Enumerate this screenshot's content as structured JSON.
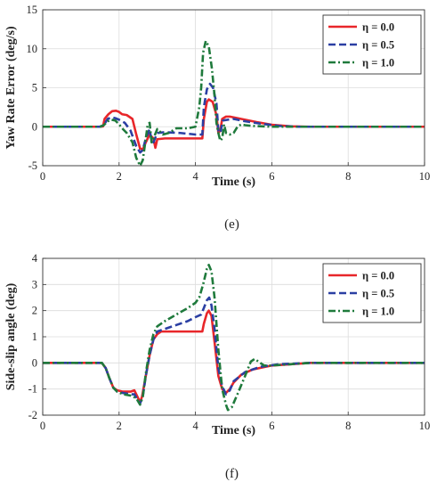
{
  "chart_data": [
    {
      "type": "line",
      "caption": "(e)",
      "xlabel": "Time (s)",
      "ylabel": "Yaw Rate Error (deg/s)",
      "xlim": [
        0,
        10
      ],
      "ylim": [
        -5,
        15
      ],
      "xticks": [
        "0",
        "2",
        "4",
        "6",
        "8",
        "10"
      ],
      "yticks": [
        "-5",
        "0",
        "5",
        "10",
        "15"
      ],
      "grid": true,
      "legend_position": "top-right",
      "series": [
        {
          "name": "η = 0.0",
          "color": "#e8262a",
          "dash": "solid",
          "points": [
            [
              0,
              0
            ],
            [
              1.5,
              0
            ],
            [
              1.58,
              0.05
            ],
            [
              1.62,
              1.0
            ],
            [
              1.72,
              1.6
            ],
            [
              1.82,
              2.0
            ],
            [
              1.92,
              2.05
            ],
            [
              2.0,
              1.9
            ],
            [
              2.08,
              1.6
            ],
            [
              2.2,
              1.5
            ],
            [
              2.35,
              1.0
            ],
            [
              2.45,
              -1.0
            ],
            [
              2.55,
              -2.8
            ],
            [
              2.62,
              -2.9
            ],
            [
              2.7,
              -2.0
            ],
            [
              2.8,
              -1.0
            ],
            [
              2.9,
              -1.5
            ],
            [
              2.95,
              -2.7
            ],
            [
              3.0,
              -1.6
            ],
            [
              3.2,
              -1.5
            ],
            [
              3.5,
              -1.5
            ],
            [
              4.0,
              -1.5
            ],
            [
              4.18,
              -1.5
            ],
            [
              4.22,
              1.0
            ],
            [
              4.3,
              3.2
            ],
            [
              4.35,
              3.5
            ],
            [
              4.45,
              3.2
            ],
            [
              4.55,
              1.5
            ],
            [
              4.6,
              -0.8
            ],
            [
              4.65,
              -0.5
            ],
            [
              4.7,
              1.0
            ],
            [
              4.8,
              1.3
            ],
            [
              4.9,
              1.3
            ],
            [
              5.2,
              1.0
            ],
            [
              5.6,
              0.6
            ],
            [
              6.0,
              0.25
            ],
            [
              6.5,
              0.05
            ],
            [
              7.0,
              0
            ],
            [
              10,
              0
            ]
          ]
        },
        {
          "name": "η = 0.5",
          "color": "#2b3fa3",
          "dash": "dash",
          "points": [
            [
              0,
              0
            ],
            [
              1.5,
              0
            ],
            [
              1.6,
              0.2
            ],
            [
              1.7,
              1.0
            ],
            [
              1.8,
              1.2
            ],
            [
              1.9,
              1.1
            ],
            [
              2.0,
              0.9
            ],
            [
              2.15,
              0.5
            ],
            [
              2.3,
              -0.5
            ],
            [
              2.45,
              -2.5
            ],
            [
              2.55,
              -3.3
            ],
            [
              2.62,
              -3.0
            ],
            [
              2.7,
              -1.5
            ],
            [
              2.8,
              -0.3
            ],
            [
              2.85,
              -1.8
            ],
            [
              2.9,
              -2.0
            ],
            [
              3.0,
              -0.8
            ],
            [
              3.2,
              -0.7
            ],
            [
              3.6,
              -0.8
            ],
            [
              4.0,
              -1.0
            ],
            [
              4.18,
              -1.0
            ],
            [
              4.22,
              2.5
            ],
            [
              4.3,
              4.8
            ],
            [
              4.38,
              5.5
            ],
            [
              4.46,
              5.0
            ],
            [
              4.55,
              3.0
            ],
            [
              4.6,
              -0.5
            ],
            [
              4.65,
              -0.8
            ],
            [
              4.72,
              0.8
            ],
            [
              4.85,
              0.9
            ],
            [
              5.0,
              1.0
            ],
            [
              5.3,
              0.7
            ],
            [
              5.7,
              0.4
            ],
            [
              6.2,
              0.1
            ],
            [
              6.7,
              0
            ],
            [
              10,
              0
            ]
          ]
        },
        {
          "name": "η = 1.0",
          "color": "#1f7a3c",
          "dash": "dashdot",
          "points": [
            [
              0,
              0
            ],
            [
              1.5,
              0
            ],
            [
              1.6,
              0.2
            ],
            [
              1.7,
              0.7
            ],
            [
              1.8,
              0.9
            ],
            [
              1.9,
              0.8
            ],
            [
              2.0,
              0.3
            ],
            [
              2.1,
              -0.3
            ],
            [
              2.2,
              -0.8
            ],
            [
              2.35,
              -2.0
            ],
            [
              2.45,
              -4.0
            ],
            [
              2.55,
              -5.0
            ],
            [
              2.62,
              -4.3
            ],
            [
              2.7,
              -1.5
            ],
            [
              2.75,
              0.3
            ],
            [
              2.8,
              0.5
            ],
            [
              2.85,
              -2.0
            ],
            [
              2.9,
              -1.5
            ],
            [
              3.0,
              -0.3
            ],
            [
              3.15,
              -1.0
            ],
            [
              3.3,
              -0.8
            ],
            [
              3.5,
              -0.2
            ],
            [
              3.8,
              -0.2
            ],
            [
              4.0,
              0.0
            ],
            [
              4.1,
              2.5
            ],
            [
              4.15,
              5.0
            ],
            [
              4.2,
              9.5
            ],
            [
              4.27,
              11.0
            ],
            [
              4.35,
              10.3
            ],
            [
              4.43,
              7.5
            ],
            [
              4.5,
              4.0
            ],
            [
              4.55,
              0.5
            ],
            [
              4.6,
              -0.8
            ],
            [
              4.65,
              -1.8
            ],
            [
              4.7,
              -1.5
            ],
            [
              4.75,
              0.3
            ],
            [
              4.8,
              -0.8
            ],
            [
              4.9,
              -1.0
            ],
            [
              5.0,
              -0.8
            ],
            [
              5.1,
              0
            ],
            [
              5.2,
              0.3
            ],
            [
              5.3,
              0.2
            ],
            [
              5.5,
              0.1
            ],
            [
              6.0,
              0
            ],
            [
              10,
              0
            ]
          ]
        }
      ]
    },
    {
      "type": "line",
      "caption": "(f)",
      "xlabel": "Time (s)",
      "ylabel": "Side-slip angle (deg)",
      "xlim": [
        0,
        10
      ],
      "ylim": [
        -2,
        4
      ],
      "xticks": [
        "0",
        "2",
        "4",
        "6",
        "8",
        "10"
      ],
      "yticks": [
        "-2",
        "-1",
        "0",
        "1",
        "2",
        "3",
        "4"
      ],
      "grid": true,
      "legend_position": "top-right",
      "series": [
        {
          "name": "η = 0.0",
          "color": "#e8262a",
          "dash": "solid",
          "points": [
            [
              0,
              0
            ],
            [
              1.55,
              0
            ],
            [
              1.65,
              -0.2
            ],
            [
              1.75,
              -0.6
            ],
            [
              1.85,
              -0.95
            ],
            [
              1.95,
              -1.05
            ],
            [
              2.1,
              -1.1
            ],
            [
              2.3,
              -1.1
            ],
            [
              2.4,
              -1.05
            ],
            [
              2.45,
              -1.2
            ],
            [
              2.55,
              -1.5
            ],
            [
              2.6,
              -1.3
            ],
            [
              2.7,
              -0.5
            ],
            [
              2.8,
              0.3
            ],
            [
              2.9,
              0.9
            ],
            [
              3.0,
              1.1
            ],
            [
              3.1,
              1.2
            ],
            [
              3.5,
              1.2
            ],
            [
              4.0,
              1.2
            ],
            [
              4.18,
              1.2
            ],
            [
              4.22,
              1.5
            ],
            [
              4.3,
              1.9
            ],
            [
              4.35,
              2.0
            ],
            [
              4.42,
              1.8
            ],
            [
              4.5,
              0.8
            ],
            [
              4.6,
              -0.5
            ],
            [
              4.7,
              -1.0
            ],
            [
              4.8,
              -1.15
            ],
            [
              4.9,
              -1.0
            ],
            [
              5.0,
              -0.75
            ],
            [
              5.2,
              -0.45
            ],
            [
              5.5,
              -0.25
            ],
            [
              6.0,
              -0.1
            ],
            [
              7.0,
              0
            ],
            [
              10,
              0
            ]
          ]
        },
        {
          "name": "η = 0.5",
          "color": "#2b3fa3",
          "dash": "dash",
          "points": [
            [
              0,
              0
            ],
            [
              1.55,
              0
            ],
            [
              1.65,
              -0.2
            ],
            [
              1.75,
              -0.6
            ],
            [
              1.85,
              -0.95
            ],
            [
              1.95,
              -1.1
            ],
            [
              2.1,
              -1.15
            ],
            [
              2.3,
              -1.2
            ],
            [
              2.4,
              -1.2
            ],
            [
              2.5,
              -1.45
            ],
            [
              2.55,
              -1.55
            ],
            [
              2.62,
              -1.3
            ],
            [
              2.7,
              -0.5
            ],
            [
              2.8,
              0.3
            ],
            [
              2.9,
              0.9
            ],
            [
              3.0,
              1.2
            ],
            [
              3.2,
              1.3
            ],
            [
              3.5,
              1.45
            ],
            [
              3.8,
              1.6
            ],
            [
              4.0,
              1.75
            ],
            [
              4.15,
              1.85
            ],
            [
              4.22,
              2.1
            ],
            [
              4.3,
              2.4
            ],
            [
              4.36,
              2.5
            ],
            [
              4.42,
              2.2
            ],
            [
              4.5,
              1.3
            ],
            [
              4.6,
              -0.2
            ],
            [
              4.7,
              -0.9
            ],
            [
              4.8,
              -1.2
            ],
            [
              4.9,
              -1.05
            ],
            [
              5.0,
              -0.7
            ],
            [
              5.3,
              -0.35
            ],
            [
              5.7,
              -0.15
            ],
            [
              6.2,
              -0.05
            ],
            [
              7.0,
              0
            ],
            [
              10,
              0
            ]
          ]
        },
        {
          "name": "η = 1.0",
          "color": "#1f7a3c",
          "dash": "dashdot",
          "points": [
            [
              0,
              0
            ],
            [
              1.55,
              0
            ],
            [
              1.65,
              -0.2
            ],
            [
              1.75,
              -0.6
            ],
            [
              1.85,
              -0.95
            ],
            [
              1.95,
              -1.1
            ],
            [
              2.1,
              -1.2
            ],
            [
              2.3,
              -1.25
            ],
            [
              2.45,
              -1.35
            ],
            [
              2.55,
              -1.6
            ],
            [
              2.62,
              -1.3
            ],
            [
              2.7,
              -0.4
            ],
            [
              2.8,
              0.5
            ],
            [
              2.9,
              1.1
            ],
            [
              3.0,
              1.4
            ],
            [
              3.2,
              1.6
            ],
            [
              3.5,
              1.85
            ],
            [
              3.8,
              2.1
            ],
            [
              4.0,
              2.3
            ],
            [
              4.1,
              2.5
            ],
            [
              4.2,
              3.0
            ],
            [
              4.3,
              3.6
            ],
            [
              4.35,
              3.75
            ],
            [
              4.42,
              3.5
            ],
            [
              4.5,
              2.5
            ],
            [
              4.6,
              0.5
            ],
            [
              4.7,
              -1.0
            ],
            [
              4.8,
              -1.6
            ],
            [
              4.85,
              -1.8
            ],
            [
              4.95,
              -1.7
            ],
            [
              5.1,
              -1.2
            ],
            [
              5.3,
              -0.5
            ],
            [
              5.45,
              0.05
            ],
            [
              5.55,
              0.15
            ],
            [
              5.65,
              0.05
            ],
            [
              5.8,
              -0.1
            ],
            [
              6.0,
              -0.1
            ],
            [
              6.5,
              -0.05
            ],
            [
              7.0,
              0
            ],
            [
              10,
              0
            ]
          ]
        }
      ]
    }
  ]
}
